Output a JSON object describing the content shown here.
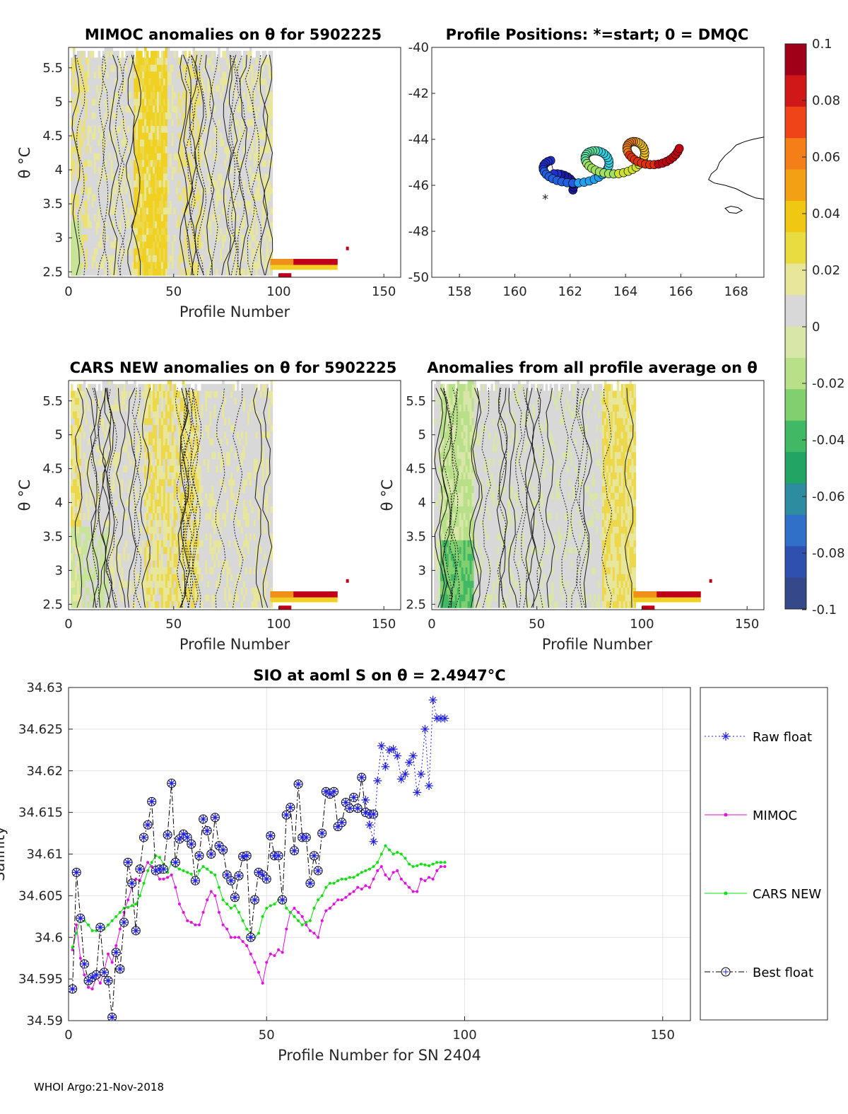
{
  "footer": "WHOI Argo:21-Nov-2018",
  "panel_a": {
    "title": "MIMOC anomalies on θ  for 5902225",
    "xlabel": "Profile Number",
    "ylabel": "θ °C",
    "xticks": [
      "0",
      "50",
      "100",
      "150"
    ],
    "yticks": [
      "2.5",
      "3",
      "3.5",
      "4",
      "4.5",
      "5",
      "5.5"
    ],
    "xlim": [
      0,
      158
    ],
    "ylim": [
      2.42,
      5.8
    ]
  },
  "panel_b": {
    "title": "Profile Positions: *=start; 0 = DMQC",
    "xticks": [
      "158",
      "160",
      "162",
      "164",
      "166",
      "168"
    ],
    "yticks": [
      "-40",
      "-42",
      "-44",
      "-46",
      "-48",
      "-50"
    ],
    "xlim": [
      157,
      169
    ],
    "ylim": [
      -50,
      -40
    ]
  },
  "panel_c": {
    "title": "CARS NEW anomalies on θ for 5902225",
    "xlabel": "Profile Number",
    "ylabel": "θ °C",
    "xticks": [
      "0",
      "50",
      "100",
      "150"
    ],
    "yticks": [
      "2.5",
      "3",
      "3.5",
      "4",
      "4.5",
      "5",
      "5.5"
    ]
  },
  "panel_d": {
    "title": "Anomalies from all profile average on θ",
    "xlabel": "Profile Number",
    "ylabel": "θ °C",
    "xticks": [
      "0",
      "50",
      "100",
      "150"
    ],
    "yticks": [
      "2.5",
      "3",
      "3.5",
      "4",
      "4.5",
      "5",
      "5.5"
    ]
  },
  "colorbar": {
    "ticks": [
      "0.1",
      "0.08",
      "0.06",
      "0.04",
      "0.02",
      "0",
      "-0.02",
      "-0.04",
      "-0.06",
      "-0.08",
      "-0.1"
    ],
    "colors": [
      "#a00018",
      "#d01818",
      "#ee4418",
      "#f47e18",
      "#f4a014",
      "#f0c814",
      "#e8dc40",
      "#e8e69a",
      "#d8d8d8",
      "#d8e6a8",
      "#b8e088",
      "#80d070",
      "#40b864",
      "#22a464",
      "#2e8ca0",
      "#3070c8",
      "#3050b0",
      "#34488a"
    ]
  },
  "chart_data": {
    "type": "line",
    "title": "SIO at aoml S on θ = 2.4947°C",
    "xlabel": "Profile Number for SN 2404",
    "ylabel": "Salinity",
    "xlim": [
      0,
      157
    ],
    "ylim": [
      34.59,
      34.63
    ],
    "xticks": [
      "0",
      "50",
      "100",
      "150"
    ],
    "yticks": [
      "34.59",
      "34.595",
      "34.6",
      "34.605",
      "34.61",
      "34.615",
      "34.62",
      "34.625",
      "34.63"
    ],
    "legend_position": "outside-right",
    "series": [
      {
        "name": "Raw float",
        "color": "#2020e0",
        "style": "dotted-star",
        "x": [
          75,
          76,
          77,
          78,
          79,
          80,
          81,
          82,
          83,
          84,
          85,
          86,
          87,
          88,
          89,
          90,
          91,
          92,
          93,
          94,
          95
        ],
        "y": [
          34.6165,
          34.6135,
          34.6115,
          34.6188,
          34.623,
          34.6205,
          34.6225,
          34.6226,
          34.6218,
          34.619,
          34.6196,
          34.621,
          34.6218,
          34.6174,
          34.6196,
          34.625,
          34.6182,
          34.6285,
          34.6263,
          34.6263,
          34.6263
        ]
      },
      {
        "name": "MIMOC",
        "color": "#e010e0",
        "style": "dot-line",
        "x": [
          1,
          2,
          3,
          4,
          5,
          6,
          7,
          8,
          9,
          10,
          11,
          12,
          13,
          14,
          15,
          16,
          17,
          18,
          19,
          20,
          21,
          22,
          23,
          24,
          25,
          26,
          27,
          28,
          29,
          30,
          31,
          32,
          33,
          34,
          35,
          36,
          37,
          38,
          39,
          40,
          41,
          42,
          43,
          44,
          45,
          46,
          47,
          48,
          49,
          50,
          51,
          52,
          53,
          54,
          55,
          56,
          57,
          58,
          59,
          60,
          61,
          62,
          63,
          64,
          65,
          66,
          67,
          68,
          69,
          70,
          71,
          72,
          73,
          74,
          75,
          76,
          77,
          78,
          79,
          80,
          81,
          82,
          83,
          84,
          85,
          86,
          87,
          88,
          89,
          90,
          91,
          92,
          93,
          94,
          95
        ],
        "y": [
          34.5985,
          34.6015,
          34.5975,
          34.5955,
          34.594,
          34.5938,
          34.5952,
          34.5945,
          34.596,
          34.598,
          34.597,
          34.599,
          34.601,
          34.603,
          34.6045,
          34.606,
          34.607,
          34.6068,
          34.608,
          34.609,
          34.6085,
          34.6078,
          34.607,
          34.607,
          34.6072,
          34.6075,
          34.606,
          34.604,
          34.603,
          34.602,
          34.6018,
          34.6015,
          34.6015,
          34.603,
          34.6045,
          34.6055,
          34.605,
          34.603,
          34.6015,
          34.601,
          34.6,
          34.6,
          34.6,
          34.5995,
          34.599,
          34.598,
          34.597,
          34.5958,
          34.5945,
          34.597,
          34.598,
          34.5978,
          34.5985,
          34.5982,
          34.601,
          34.603,
          34.6035,
          34.603,
          34.6025,
          34.6015,
          34.6008,
          34.6005,
          34.6,
          34.602,
          34.6032,
          34.6035,
          34.604,
          34.6045,
          34.6045,
          34.6048,
          34.6052,
          34.6055,
          34.606,
          34.6058,
          34.6062,
          34.606,
          34.607,
          34.608,
          34.6085,
          34.6075,
          34.607,
          34.6078,
          34.608,
          34.607,
          34.6065,
          34.606,
          34.6055,
          34.6055,
          34.607,
          34.6068,
          34.6072,
          34.607,
          34.608,
          34.6085,
          34.6085
        ]
      },
      {
        "name": "CARS NEW",
        "color": "#10e010",
        "style": "dot-line",
        "x": [
          1,
          2,
          3,
          4,
          5,
          6,
          7,
          8,
          9,
          10,
          11,
          12,
          13,
          14,
          15,
          16,
          17,
          18,
          19,
          20,
          21,
          22,
          23,
          24,
          25,
          26,
          27,
          28,
          29,
          30,
          31,
          32,
          33,
          34,
          35,
          36,
          37,
          38,
          39,
          40,
          41,
          42,
          43,
          44,
          45,
          46,
          47,
          48,
          49,
          50,
          51,
          52,
          53,
          54,
          55,
          56,
          57,
          58,
          59,
          60,
          61,
          62,
          63,
          64,
          65,
          66,
          67,
          68,
          69,
          70,
          71,
          72,
          73,
          74,
          75,
          76,
          77,
          78,
          79,
          80,
          81,
          82,
          83,
          84,
          85,
          86,
          87,
          88,
          89,
          90,
          91,
          92,
          93,
          94,
          95
        ],
        "y": [
          34.5988,
          34.6005,
          34.6022,
          34.602,
          34.6015,
          34.6008,
          34.6008,
          34.6013,
          34.601,
          34.6015,
          34.602,
          34.6025,
          34.603,
          34.6035,
          34.6036,
          34.6038,
          34.604,
          34.605,
          34.6065,
          34.608,
          34.609,
          34.6098,
          34.6096,
          34.6088,
          34.6078,
          34.609,
          34.6085,
          34.6082,
          34.608,
          34.6078,
          34.6076,
          34.6065,
          34.608,
          34.6085,
          34.6082,
          34.6078,
          34.6075,
          34.606,
          34.6045,
          34.604,
          34.6035,
          34.6038,
          34.603,
          34.602,
          34.601,
          34.6005,
          34.6,
          34.6005,
          34.6025,
          34.6035,
          34.6038,
          34.604,
          34.6045,
          34.6048,
          34.6035,
          34.603,
          34.6025,
          34.602,
          34.6015,
          34.6018,
          34.602,
          34.6035,
          34.6045,
          34.605,
          34.606,
          34.6065,
          34.6065,
          34.6068,
          34.607,
          34.607,
          34.6072,
          34.6072,
          34.6075,
          34.6078,
          34.608,
          34.6082,
          34.6085,
          34.609,
          34.61,
          34.611,
          34.6105,
          34.61,
          34.6102,
          34.61,
          34.6095,
          34.6088,
          34.6085,
          34.6086,
          34.6088,
          34.6087,
          34.6086,
          34.6088,
          34.609,
          34.609,
          34.609
        ]
      },
      {
        "name": "Best float",
        "color": "#000000",
        "style": "dashdot-circle",
        "x": [
          1,
          2,
          3,
          4,
          5,
          6,
          7,
          8,
          9,
          10,
          11,
          12,
          13,
          14,
          15,
          16,
          17,
          18,
          19,
          20,
          21,
          22,
          23,
          24,
          25,
          26,
          27,
          28,
          29,
          30,
          31,
          32,
          33,
          34,
          35,
          36,
          37,
          38,
          39,
          40,
          41,
          42,
          43,
          44,
          45,
          46,
          47,
          48,
          49,
          50,
          51,
          52,
          53,
          54,
          55,
          56,
          57,
          58,
          59,
          60,
          61,
          62,
          63,
          64,
          65,
          66,
          67,
          68,
          69,
          70,
          71,
          72,
          73,
          74,
          75,
          76,
          77
        ],
        "y": [
          34.5938,
          34.6078,
          34.6023,
          34.5968,
          34.5948,
          34.5952,
          34.5955,
          34.6012,
          34.5958,
          34.5948,
          34.5904,
          34.5982,
          34.5962,
          34.6018,
          34.609,
          34.6065,
          34.6008,
          34.6082,
          34.612,
          34.6135,
          34.6163,
          34.608,
          34.6082,
          34.6082,
          34.6123,
          34.6185,
          34.609,
          34.6118,
          34.6124,
          34.612,
          34.6112,
          34.6068,
          34.6098,
          34.6142,
          34.6128,
          34.61,
          34.6144,
          34.611,
          34.6105,
          34.6075,
          34.6068,
          34.6048,
          34.6074,
          34.6097,
          34.6098,
          34.6,
          34.6045,
          34.6078,
          34.6075,
          34.607,
          34.6122,
          34.6098,
          34.6098,
          34.6045,
          34.6147,
          34.6156,
          34.6104,
          34.6184,
          34.612,
          34.612,
          34.6065,
          34.6098,
          34.608,
          34.6125,
          34.6175,
          34.6172,
          34.6175,
          34.6133,
          34.6138,
          34.6162,
          34.6155,
          34.6168,
          34.6155,
          34.6192,
          34.615,
          34.6148,
          34.6148
        ]
      }
    ]
  }
}
